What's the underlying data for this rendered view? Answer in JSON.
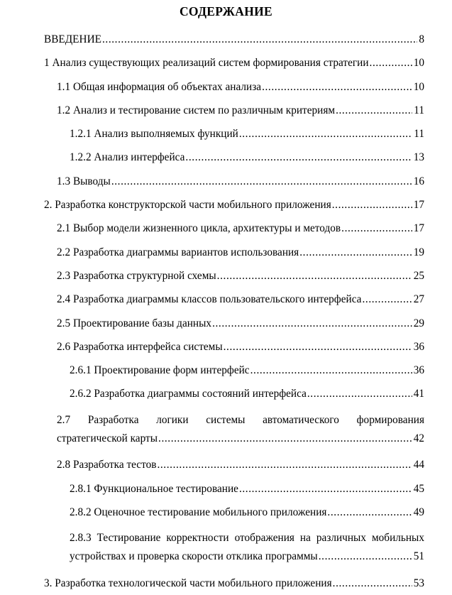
{
  "heading": "СОДЕРЖАНИЕ",
  "entries": [
    {
      "level": 1,
      "title": "ВВЕДЕНИЕ",
      "page": "8"
    },
    {
      "level": 1,
      "title": "1 Анализ существующих реализаций систем формирования стратегии",
      "page": "10"
    },
    {
      "level": 2,
      "title": "1.1 Общая информация об объектах анализа",
      "page": "10"
    },
    {
      "level": 2,
      "title": "1.2 Анализ и тестирование систем по различным критериям",
      "page": "11"
    },
    {
      "level": 3,
      "title": "1.2.1 Анализ выполняемых функций",
      "page": "11"
    },
    {
      "level": 3,
      "title": "1.2.2 Анализ интерфейса",
      "page": "13"
    },
    {
      "level": 2,
      "title": "1.3 Выводы",
      "page": "16"
    },
    {
      "level": 1,
      "title": "2. Разработка конструкторской части мобильного приложения",
      "page": "17"
    },
    {
      "level": 2,
      "title": "2.1 Выбор модели жизненного цикла, архитектуры и методов",
      "page": "17"
    },
    {
      "level": 2,
      "title": "2.2 Разработка диаграммы вариантов использования",
      "page": "19"
    },
    {
      "level": 2,
      "title": "2.3 Разработка структурной схемы",
      "page": "25"
    },
    {
      "level": 2,
      "title": "2.4 Разработка диаграммы классов пользовательского интерфейса",
      "page": "27"
    },
    {
      "level": 2,
      "title": "2.5 Проектирование базы данных",
      "page": "29"
    },
    {
      "level": 2,
      "title": "2.6 Разработка интерфейса системы",
      "page": "36"
    },
    {
      "level": 3,
      "title": "2.6.1 Проектирование форм интерфейс",
      "page": "36"
    },
    {
      "level": 3,
      "title": "2.6.2 Разработка диаграммы состояний интерфейса",
      "page": "41"
    },
    {
      "level": 2,
      "title_lines": [
        "2.7 Разработка логики системы автоматического формирования",
        "стратегической карты"
      ],
      "page": "42"
    },
    {
      "level": 2,
      "title": "2.8 Разработка тестов",
      "page": "44"
    },
    {
      "level": 3,
      "title": "2.8.1 Функциональное тестирование",
      "page": "45"
    },
    {
      "level": 3,
      "title": "2.8.2 Оценочное тестирование мобильного приложения",
      "page": "49"
    },
    {
      "level": 3,
      "title_lines": [
        "2.8.3 Тестирование корректности отображения на различных мобильных",
        "устройствах и проверка скорости отклика программы"
      ],
      "page": "51"
    },
    {
      "level": 1,
      "title": "3. Разработка технологической части мобильного приложения",
      "page": "53"
    }
  ]
}
